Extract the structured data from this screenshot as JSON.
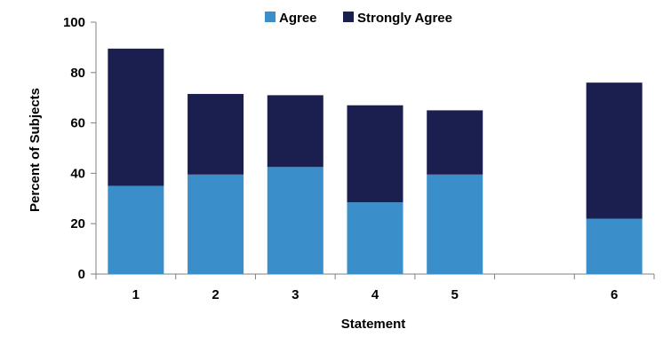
{
  "chart_data": {
    "type": "bar",
    "stacked": true,
    "xlabel": "Statement",
    "ylabel": "Percent of Subjects",
    "ylim": [
      0,
      100
    ],
    "yticks": [
      0,
      20,
      40,
      60,
      80,
      100
    ],
    "grid": false,
    "legend_position": "top",
    "categories": [
      "1",
      "2",
      "3",
      "4",
      "5",
      "",
      "6"
    ],
    "series": [
      {
        "name": "Agree",
        "color": "#3a8fca",
        "values": [
          35,
          39.5,
          42.5,
          28.5,
          39.5,
          null,
          22
        ]
      },
      {
        "name": "Strongly Agree",
        "color": "#1b1f4f",
        "values": [
          54.5,
          32,
          28.5,
          38.5,
          25.5,
          null,
          54
        ]
      }
    ]
  }
}
